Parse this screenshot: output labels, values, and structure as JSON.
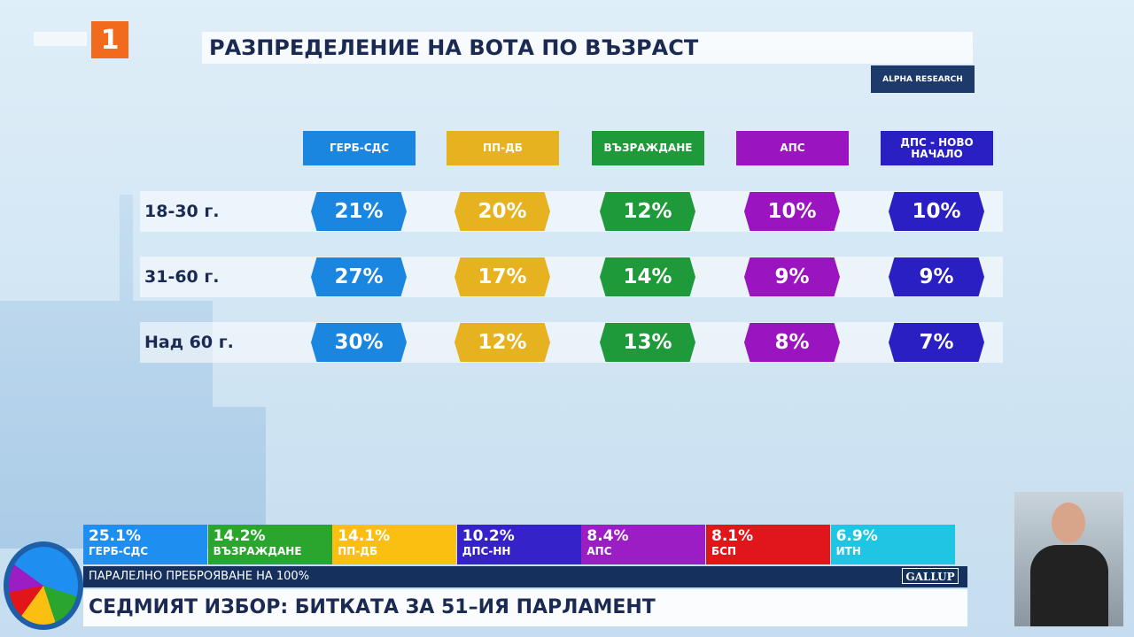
{
  "logo": "1",
  "title": "РАЗПРЕДЕЛЕНИЕ НА ВОТА ПО ВЪЗРАСТ",
  "source": "ALPHA RESEARCH",
  "table": {
    "columns": [
      {
        "name": "ГЕРБ-СДС",
        "color": "#1a86e0"
      },
      {
        "name": "ПП-ДБ",
        "color": "#e7b21f"
      },
      {
        "name": "ВЪЗРАЖДАНЕ",
        "color": "#1f9a3a"
      },
      {
        "name": "АПС",
        "color": "#9a14c0"
      },
      {
        "name": "ДПС - НОВО НАЧАЛО",
        "color": "#2a1fc2"
      }
    ],
    "rows": [
      {
        "label": "18-30 г.",
        "values": [
          "21%",
          "20%",
          "12%",
          "10%",
          "10%"
        ]
      },
      {
        "label": "31-60 г.",
        "values": [
          "27%",
          "17%",
          "14%",
          "9%",
          "9%"
        ]
      },
      {
        "label": "Над 60 г.",
        "values": [
          "30%",
          "12%",
          "13%",
          "8%",
          "7%"
        ]
      }
    ]
  },
  "results": {
    "items": [
      {
        "value": "25.1%",
        "name": "ГЕРБ-СДС",
        "color": "#1e8ff0"
      },
      {
        "value": "14.2%",
        "name": "ВЪЗРАЖДАНЕ",
        "color": "#2aa52e"
      },
      {
        "value": "14.1%",
        "name": "ПП-ДБ",
        "color": "#fbbf12"
      },
      {
        "value": "10.2%",
        "name": "ДПС-НН",
        "color": "#3522c8"
      },
      {
        "value": "8.4%",
        "name": "АПС",
        "color": "#9b1dc4"
      },
      {
        "value": "8.1%",
        "name": "БСП",
        "color": "#e0161a"
      },
      {
        "value": "6.9%",
        "name": "ИТН",
        "color": "#1ec6e4"
      }
    ],
    "caption": "ПАРАЛЕЛНО ПРЕБРОЯВАНЕ НА 100%",
    "source": "GALLUP"
  },
  "headline": "СЕДМИЯТ ИЗБОР: БИТКАТА ЗА 51–ИЯ ПАРЛАМЕНТ"
}
